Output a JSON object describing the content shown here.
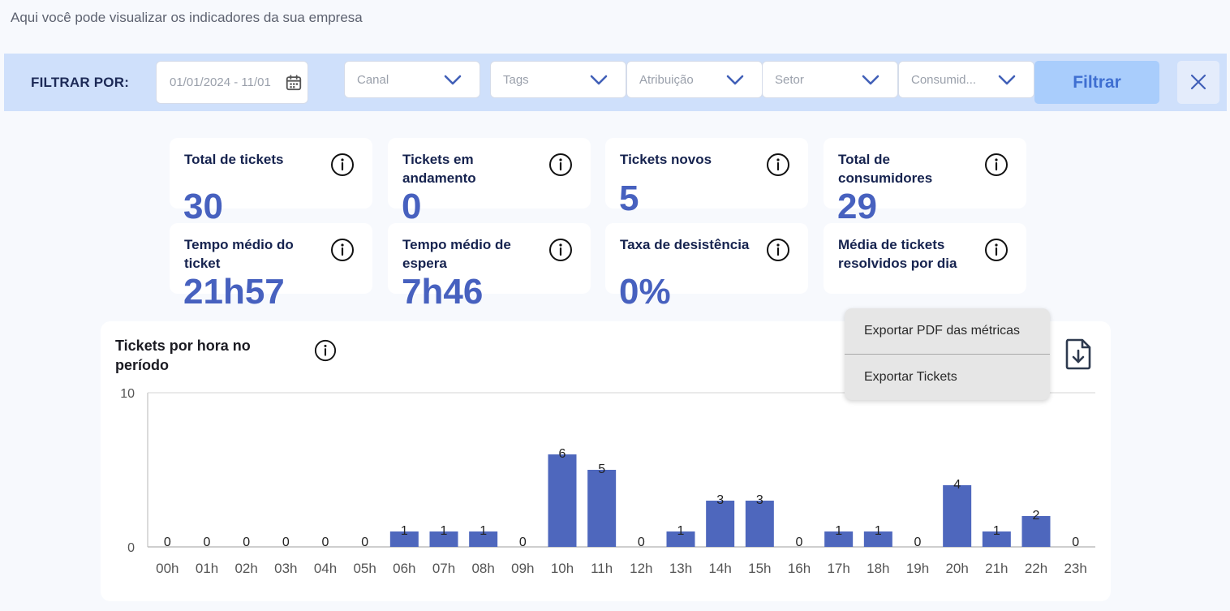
{
  "page": {
    "subtitle": "Aqui você pode visualizar os indicadores da sua empresa"
  },
  "filters": {
    "label": "FILTRAR POR:",
    "date_value": "01/01/2024 - 11/01",
    "selects": [
      {
        "label": "Canal"
      },
      {
        "label": "Tags"
      },
      {
        "label": "Atribuição"
      },
      {
        "label": "Setor"
      },
      {
        "label": "Consumid..."
      }
    ],
    "filter_button": "Filtrar"
  },
  "metrics": [
    {
      "title": "Total de tickets",
      "value": "30"
    },
    {
      "title": "Tickets em andamento",
      "value": "0"
    },
    {
      "title": "Tickets novos",
      "value": "5"
    },
    {
      "title": "Total de consumidores",
      "value": "29"
    },
    {
      "title": "Tempo médio do ticket",
      "value": "21h57"
    },
    {
      "title": "Tempo médio de espera",
      "value": "7h46"
    },
    {
      "title": "Taxa de desistência",
      "value": "0%"
    },
    {
      "title": "Média de tickets resolvidos por dia",
      "value": ""
    }
  ],
  "export_menu": {
    "items": [
      {
        "label": "Exportar PDF das métricas"
      },
      {
        "label": "Exportar Tickets"
      }
    ]
  },
  "chart_card": {
    "title": "Tickets por hora no período"
  },
  "colors": {
    "accent": "#4761bf",
    "bar": "#4e67bd",
    "filter_bar_bg": "#cfe0fb",
    "filter_button_bg": "#a9cdfc"
  },
  "chart_data": {
    "type": "bar",
    "title": "Tickets por hora no período",
    "categories": [
      "00h",
      "01h",
      "02h",
      "03h",
      "04h",
      "05h",
      "06h",
      "07h",
      "08h",
      "09h",
      "10h",
      "11h",
      "12h",
      "13h",
      "14h",
      "15h",
      "16h",
      "17h",
      "18h",
      "19h",
      "20h",
      "21h",
      "22h",
      "23h"
    ],
    "values": [
      0,
      0,
      0,
      0,
      0,
      0,
      1,
      1,
      1,
      0,
      6,
      5,
      0,
      1,
      3,
      3,
      0,
      1,
      1,
      0,
      4,
      1,
      2,
      0
    ],
    "ylim": [
      0,
      10
    ],
    "yticks": [
      0,
      10
    ],
    "data_labels": true,
    "grid": false,
    "legend": "none"
  }
}
